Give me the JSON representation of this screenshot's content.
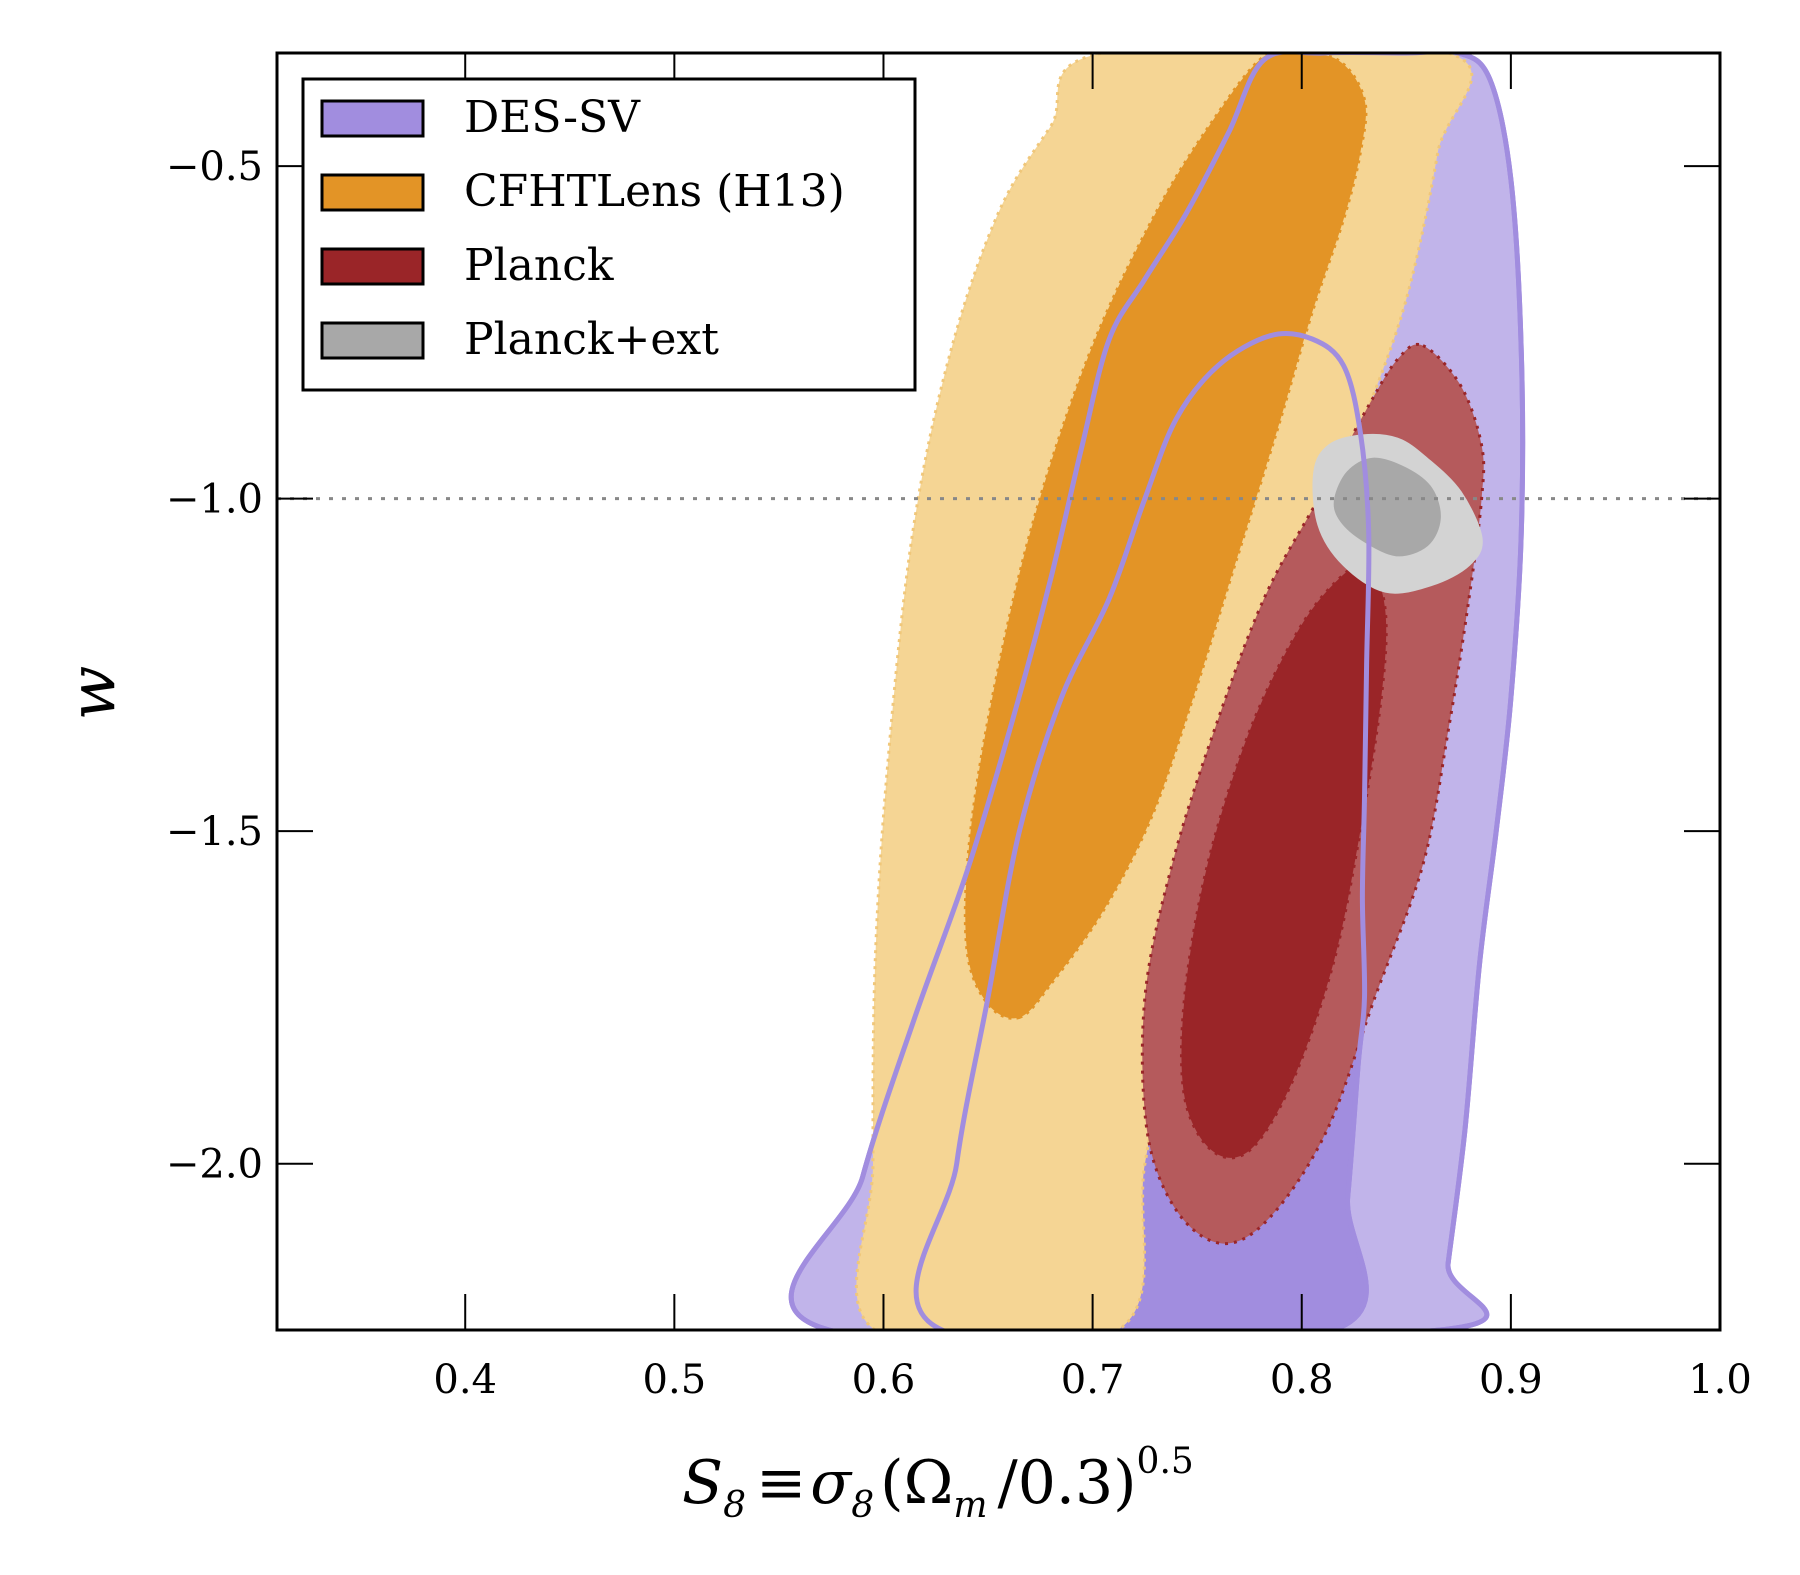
{
  "chart_data": {
    "type": "contour",
    "title": "",
    "xlabel": {
      "main": "S",
      "main_sub": "8",
      "equiv": "≡",
      "sigma": "σ",
      "sigma_sub": "8",
      "open": "(",
      "omega": "Ω",
      "omega_sub": "m",
      "rest": "/0.3",
      "close": ")",
      "exponent": "0.5"
    },
    "ylabel": "w",
    "xlim": [
      0.31,
      1.0
    ],
    "ylim": [
      -2.25,
      -0.33
    ],
    "xticks": [
      0.4,
      0.5,
      0.6,
      0.7,
      0.8,
      0.9,
      1.0
    ],
    "xtick_labels": [
      "0.4",
      "0.5",
      "0.6",
      "0.7",
      "0.8",
      "0.9",
      "1.0"
    ],
    "yticks": [
      -0.5,
      -1.0,
      -1.5,
      -2.0
    ],
    "ytick_labels": [
      "−0.5",
      "−1.0",
      "−1.5",
      "−2.0"
    ],
    "reference_line": {
      "y": -1.0,
      "style": "dotted",
      "color": "#888888"
    },
    "legend": {
      "position": "top-left",
      "entries": [
        {
          "label": "DES-SV",
          "color": "#a18ddf"
        },
        {
          "label": "CFHTLens (H13)",
          "color": "#e39426"
        },
        {
          "label": "Planck",
          "color": "#9a2528"
        },
        {
          "label": "Planck+ext",
          "color": "#a8a8a8"
        }
      ]
    },
    "series": [
      {
        "name": "DES-SV",
        "outer_color": "#c1b4ea",
        "inner_color": "#a18ddf",
        "edge_color": "#a18ddf",
        "contour_outer": [
          [
            0.574,
            -2.25
          ],
          [
            0.59,
            -2.02
          ],
          [
            0.615,
            -1.78
          ],
          [
            0.64,
            -1.56
          ],
          [
            0.662,
            -1.33
          ],
          [
            0.68,
            -1.12
          ],
          [
            0.695,
            -0.92
          ],
          [
            0.708,
            -0.76
          ],
          [
            0.725,
            -0.67
          ],
          [
            0.745,
            -0.57
          ],
          [
            0.765,
            -0.45
          ],
          [
            0.782,
            -0.34
          ],
          [
            0.81,
            -0.33
          ],
          [
            0.85,
            -0.33
          ],
          [
            0.875,
            -0.33
          ],
          [
            0.89,
            -0.37
          ],
          [
            0.9,
            -0.52
          ],
          [
            0.905,
            -0.78
          ],
          [
            0.905,
            -1.05
          ],
          [
            0.9,
            -1.3
          ],
          [
            0.893,
            -1.5
          ],
          [
            0.885,
            -1.7
          ],
          [
            0.878,
            -1.95
          ],
          [
            0.87,
            -2.15
          ],
          [
            0.866,
            -2.25
          ]
        ],
        "contour_inner": [
          [
            0.628,
            -2.25
          ],
          [
            0.635,
            -2.0
          ],
          [
            0.65,
            -1.75
          ],
          [
            0.665,
            -1.5
          ],
          [
            0.685,
            -1.3
          ],
          [
            0.708,
            -1.15
          ],
          [
            0.725,
            -1.0
          ],
          [
            0.74,
            -0.88
          ],
          [
            0.76,
            -0.8
          ],
          [
            0.785,
            -0.755
          ],
          [
            0.805,
            -0.76
          ],
          [
            0.82,
            -0.8
          ],
          [
            0.828,
            -0.9
          ],
          [
            0.832,
            -1.05
          ],
          [
            0.831,
            -1.25
          ],
          [
            0.83,
            -1.45
          ],
          [
            0.829,
            -1.6
          ],
          [
            0.83,
            -1.75
          ],
          [
            0.827,
            -1.85
          ],
          [
            0.822,
            -2.05
          ],
          [
            0.815,
            -2.25
          ]
        ]
      },
      {
        "name": "CFHTLens (H13)",
        "outer_color": "#f5d594",
        "inner_color": "#e39426",
        "edge_color": "#f0c77a",
        "contour_outer": [
          [
            0.596,
            -2.25
          ],
          [
            0.595,
            -2.0
          ],
          [
            0.596,
            -1.7
          ],
          [
            0.602,
            -1.4
          ],
          [
            0.614,
            -1.05
          ],
          [
            0.632,
            -0.78
          ],
          [
            0.655,
            -0.57
          ],
          [
            0.68,
            -0.44
          ],
          [
            0.705,
            -0.33
          ],
          [
            0.87,
            -0.33
          ],
          [
            0.865,
            -0.48
          ],
          [
            0.85,
            -0.7
          ],
          [
            0.83,
            -0.88
          ],
          [
            0.815,
            -1.0
          ],
          [
            0.795,
            -1.13
          ],
          [
            0.775,
            -1.28
          ],
          [
            0.755,
            -1.5
          ],
          [
            0.74,
            -1.75
          ],
          [
            0.725,
            -2.0
          ],
          [
            0.712,
            -2.25
          ]
        ],
        "contour_inner": [
          [
            0.665,
            -1.78
          ],
          [
            0.68,
            -1.73
          ],
          [
            0.705,
            -1.62
          ],
          [
            0.728,
            -1.48
          ],
          [
            0.748,
            -1.3
          ],
          [
            0.768,
            -1.1
          ],
          [
            0.788,
            -0.9
          ],
          [
            0.805,
            -0.72
          ],
          [
            0.82,
            -0.58
          ],
          [
            0.828,
            -0.48
          ],
          [
            0.83,
            -0.4
          ],
          [
            0.817,
            -0.34
          ],
          [
            0.793,
            -0.33
          ],
          [
            0.78,
            -0.34
          ],
          [
            0.76,
            -0.42
          ],
          [
            0.732,
            -0.56
          ],
          [
            0.7,
            -0.77
          ],
          [
            0.672,
            -1.03
          ],
          [
            0.652,
            -1.3
          ],
          [
            0.641,
            -1.52
          ],
          [
            0.64,
            -1.68
          ],
          [
            0.65,
            -1.76
          ]
        ]
      },
      {
        "name": "Planck",
        "outer_color": "#b55a5c",
        "inner_color": "#9a2528",
        "edge_color": "#9a2528",
        "contour_outer": [
          [
            0.858,
            -0.77
          ],
          [
            0.876,
            -0.83
          ],
          [
            0.886,
            -0.92
          ],
          [
            0.886,
            -1.0
          ],
          [
            0.88,
            -1.15
          ],
          [
            0.87,
            -1.35
          ],
          [
            0.858,
            -1.55
          ],
          [
            0.835,
            -1.75
          ],
          [
            0.812,
            -1.95
          ],
          [
            0.785,
            -2.08
          ],
          [
            0.762,
            -2.12
          ],
          [
            0.74,
            -2.07
          ],
          [
            0.726,
            -1.95
          ],
          [
            0.725,
            -1.75
          ],
          [
            0.738,
            -1.55
          ],
          [
            0.758,
            -1.35
          ],
          [
            0.782,
            -1.15
          ],
          [
            0.808,
            -1.0
          ],
          [
            0.832,
            -0.86
          ],
          [
            0.846,
            -0.79
          ]
        ],
        "contour_inner": [
          [
            0.832,
            -1.1
          ],
          [
            0.84,
            -1.17
          ],
          [
            0.838,
            -1.3
          ],
          [
            0.828,
            -1.5
          ],
          [
            0.815,
            -1.7
          ],
          [
            0.795,
            -1.88
          ],
          [
            0.775,
            -1.98
          ],
          [
            0.757,
            -1.98
          ],
          [
            0.744,
            -1.9
          ],
          [
            0.744,
            -1.75
          ],
          [
            0.755,
            -1.55
          ],
          [
            0.775,
            -1.35
          ],
          [
            0.798,
            -1.2
          ],
          [
            0.818,
            -1.12
          ]
        ]
      },
      {
        "name": "Planck+ext",
        "outer_color": "#d3d3d3",
        "inner_color": "#a8a8a8",
        "edge_color": "#d3d3d3",
        "contour_outer": [
          [
            0.806,
            -0.96
          ],
          [
            0.813,
            -0.92
          ],
          [
            0.829,
            -0.905
          ],
          [
            0.846,
            -0.91
          ],
          [
            0.86,
            -0.94
          ],
          [
            0.876,
            -0.99
          ],
          [
            0.886,
            -1.06
          ],
          [
            0.88,
            -1.1
          ],
          [
            0.862,
            -1.13
          ],
          [
            0.84,
            -1.14
          ],
          [
            0.82,
            -1.1
          ],
          [
            0.808,
            -1.04
          ]
        ],
        "contour_inner": [
          [
            0.816,
            -1.0
          ],
          [
            0.822,
            -0.96
          ],
          [
            0.834,
            -0.94
          ],
          [
            0.85,
            -0.955
          ],
          [
            0.862,
            -0.985
          ],
          [
            0.866,
            -1.03
          ],
          [
            0.86,
            -1.07
          ],
          [
            0.845,
            -1.085
          ],
          [
            0.828,
            -1.06
          ],
          [
            0.818,
            -1.03
          ]
        ]
      }
    ]
  }
}
